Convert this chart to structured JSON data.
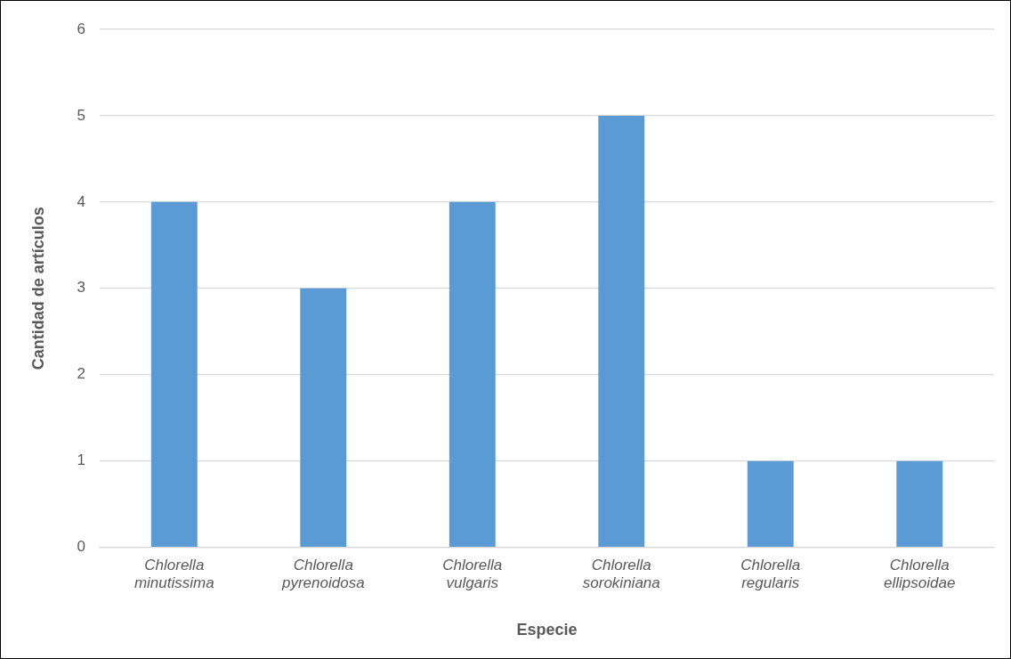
{
  "chart_data": {
    "type": "bar",
    "xlabel": "Especie",
    "ylabel": "Cantidad de artículos",
    "categories": [
      "Chlorella minutissima",
      "Chlorella pyrenoidosa",
      "Chlorella vulgaris",
      "Chlorella sorokiniana",
      "Chlorella regularis",
      "Chlorella ellipsoidae"
    ],
    "values": [
      4,
      3,
      4,
      5,
      1,
      1
    ],
    "color": "#5b9bd5",
    "ylim": [
      0,
      6
    ],
    "yticks": [
      0,
      1,
      2,
      3,
      4,
      5,
      6
    ],
    "grid": "y"
  }
}
